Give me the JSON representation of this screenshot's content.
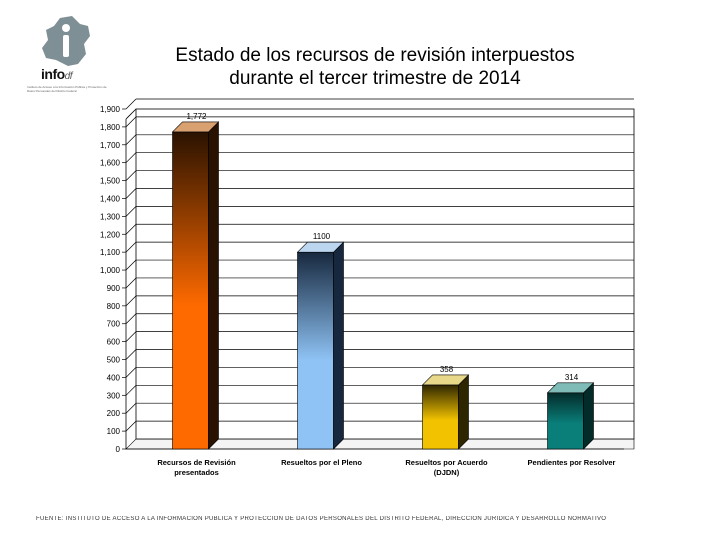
{
  "header": {
    "logo_text": "info",
    "logo_sub": "df",
    "logo_tagline": "Instituto de Acceso a la Información Pública y Protección de Datos Personales del Distrito Federal",
    "title_line1": "Estado de los recursos de revisión interpuestos",
    "title_line2": "durante el tercer trimestre de 2014"
  },
  "colors": {
    "bar1_front": "#ff6a00",
    "bar1_top": "#d9a070",
    "bar1_side": "#2a1200",
    "bar2_front": "#8fc3f5",
    "bar2_top": "#bcd6ef",
    "bar2_side": "#17283e",
    "bar3_front": "#f2c200",
    "bar3_top": "#e8d98a",
    "bar3_side": "#2e2600",
    "bar4_front": "#0a7f7a",
    "bar4_top": "#7fbcb8",
    "bar4_side": "#032b2a",
    "grid": "#000000",
    "plot_bg": "#ffffff"
  },
  "chart_data": {
    "type": "bar",
    "title": "Estado de los recursos de revisión interpuestos durante el tercer trimestre de 2014",
    "xlabel": "",
    "ylabel": "",
    "ylim": [
      0,
      1900
    ],
    "yticks": [
      0,
      100,
      200,
      300,
      400,
      500,
      600,
      700,
      800,
      900,
      1000,
      1100,
      1200,
      1300,
      1400,
      1500,
      1600,
      1700,
      1800,
      1900
    ],
    "ytick_labels": [
      "0",
      "100",
      "200",
      "300",
      "400",
      "500",
      "600",
      "700",
      "800",
      "900",
      "1,000",
      "1,100",
      "1,200",
      "1,300",
      "1,400",
      "1,500",
      "1,600",
      "1,700",
      "1,800",
      "1,900"
    ],
    "categories": [
      [
        "Recursos de Revisión",
        "presentados"
      ],
      [
        "Resueltos por el Pleno"
      ],
      [
        "Resueltos por Acuerdo",
        "(DJDN)"
      ],
      [
        "Pendientes por Resolver"
      ]
    ],
    "values": [
      1772,
      1100,
      358,
      314
    ],
    "data_labels": [
      "1,772",
      "1100",
      "358",
      "314"
    ],
    "grid": true
  },
  "footer": {
    "source": "FUENTE: INSTITUTO DE ACCESO A LA INFORMACION PUBLICA Y PROTECCION DE DATOS PERSONALES DEL DISTRITO FEDERAL, DIRECCION JURIDICA Y DESARROLLO NORMATIVO"
  }
}
